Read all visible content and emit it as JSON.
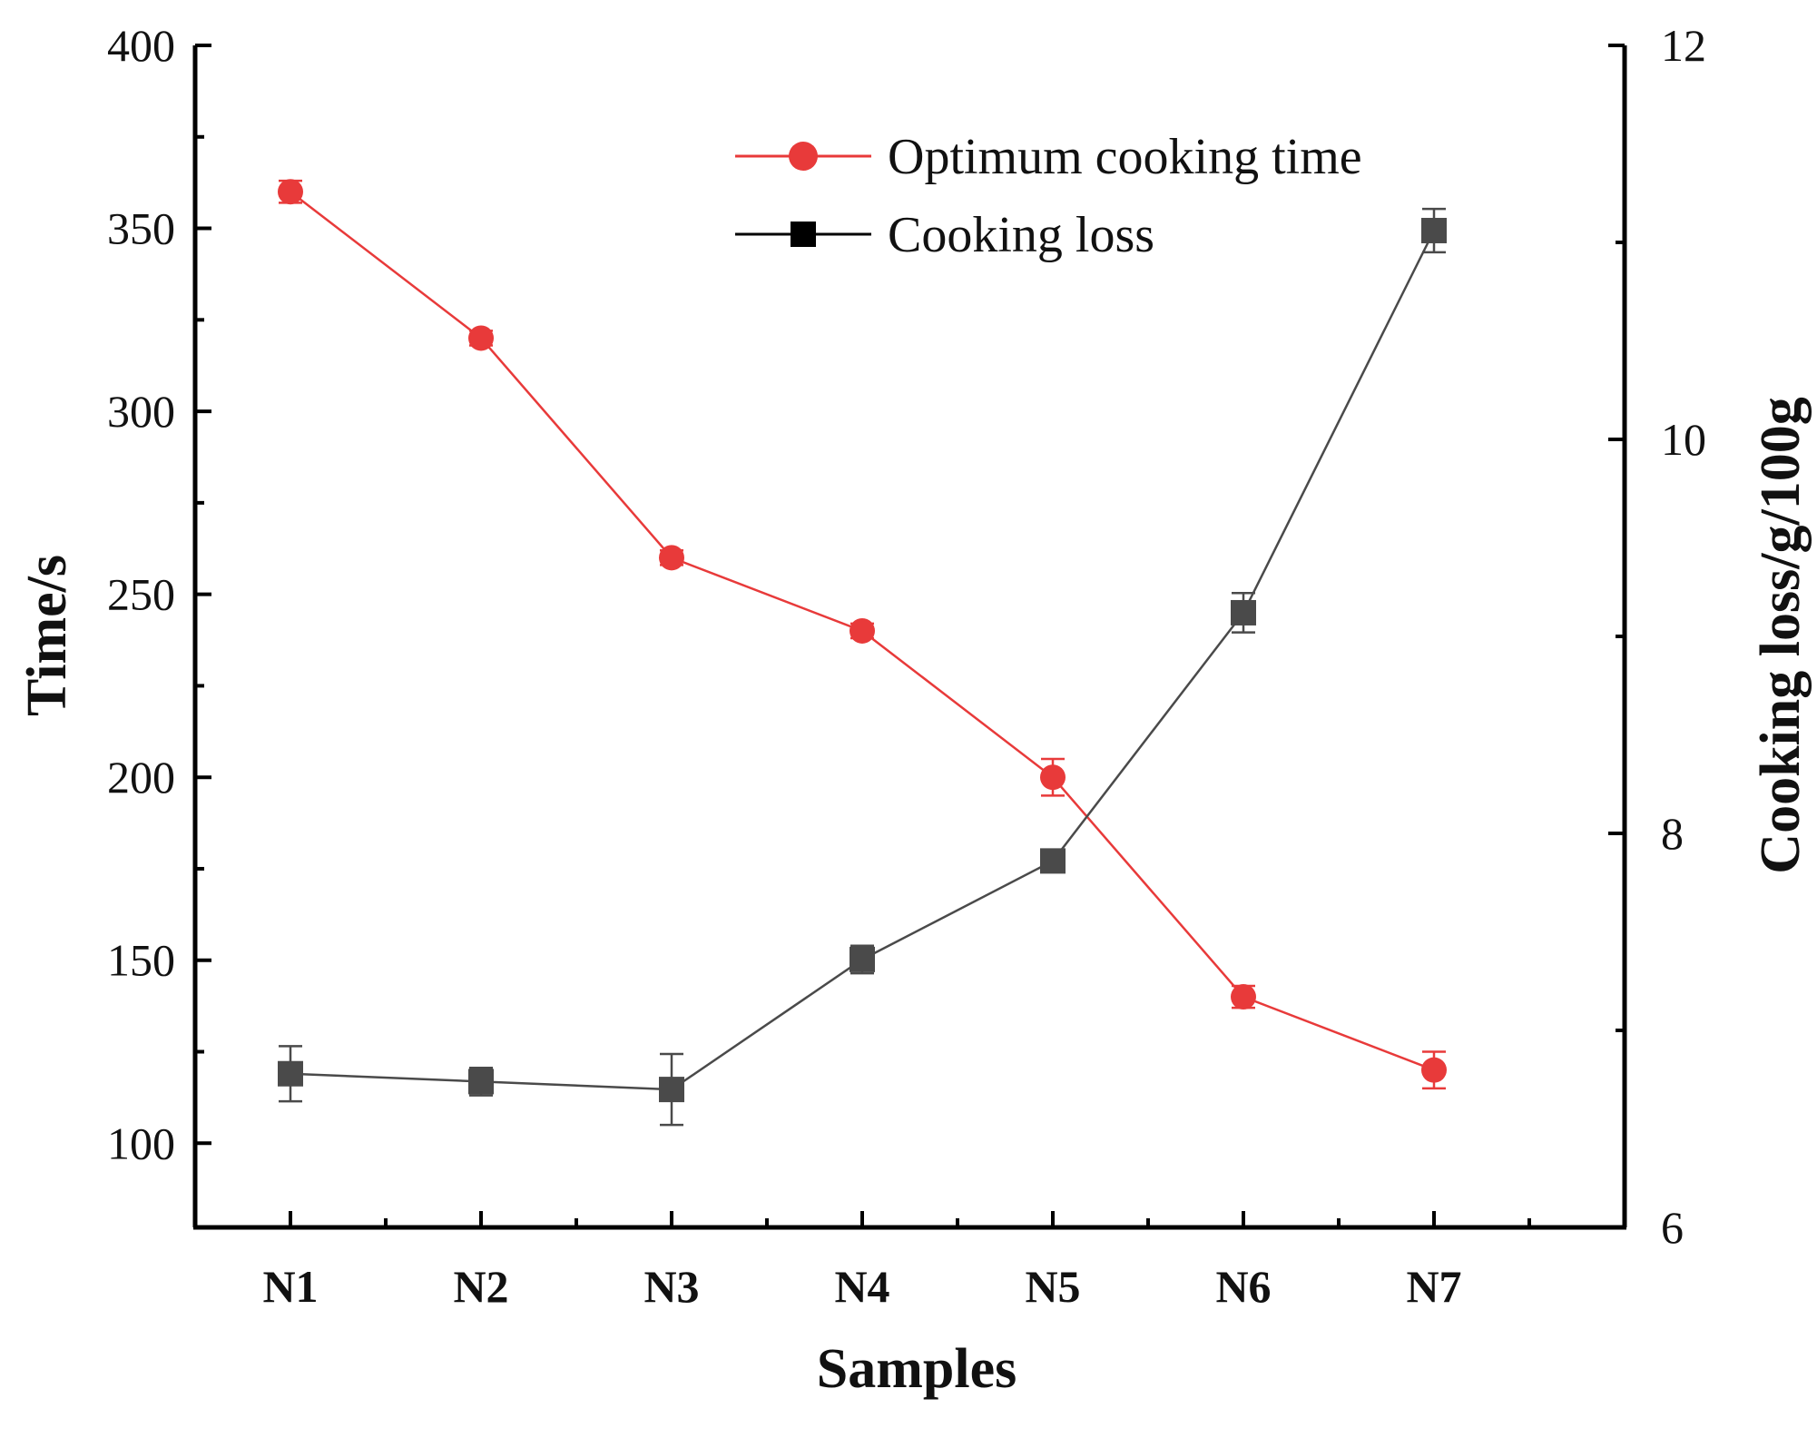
{
  "chart_data": {
    "type": "line",
    "title": "",
    "xlabel": "Samples",
    "ylabel": "Time/s",
    "y2label": "Cooking loss/g/100g",
    "categories": [
      "N1",
      "N2",
      "N3",
      "N4",
      "N5",
      "N6",
      "N7"
    ],
    "ylim": [
      77,
      400
    ],
    "y2lim": [
      6,
      12
    ],
    "yticks": [
      100,
      150,
      200,
      250,
      300,
      350,
      400
    ],
    "y2ticks": [
      6,
      8,
      10,
      12
    ],
    "legend_position": "top-right",
    "series": [
      {
        "name": "Optimum cooking time",
        "axis": "left",
        "color": "#e83a3a",
        "marker": "circle",
        "values": [
          360,
          320,
          260,
          240,
          200,
          140,
          120
        ],
        "errors": [
          3,
          2,
          2,
          2,
          5,
          3,
          5
        ]
      },
      {
        "name": "Cooking loss",
        "axis": "right",
        "color": "#4a4a4a",
        "marker": "square",
        "values": [
          6.78,
          6.74,
          6.7,
          7.36,
          7.86,
          9.12,
          11.06
        ],
        "errors": [
          0.14,
          0.07,
          0.18,
          0.07,
          0.03,
          0.1,
          0.11
        ]
      }
    ]
  }
}
